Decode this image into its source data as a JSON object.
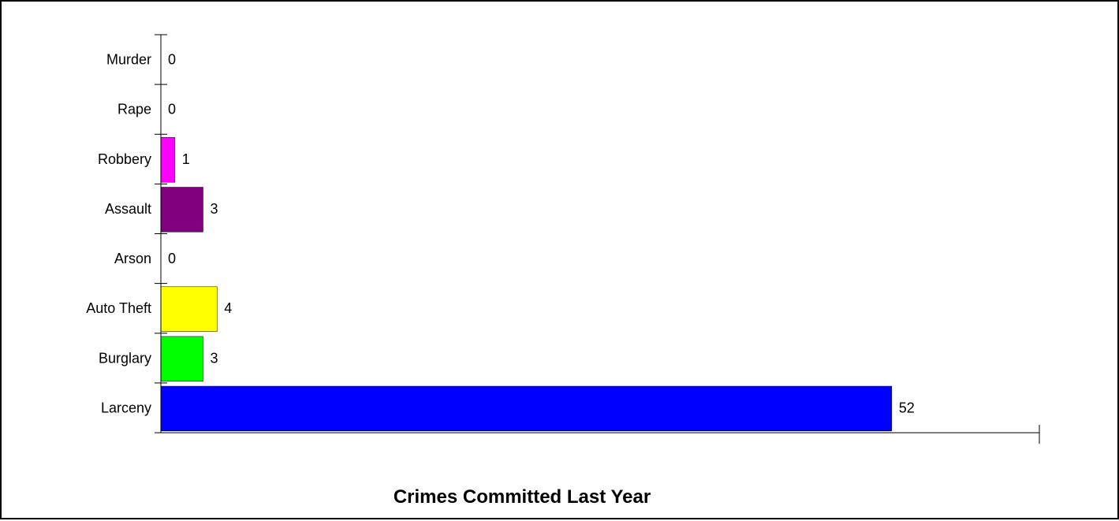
{
  "chart_data": {
    "type": "bar",
    "orientation": "horizontal",
    "title": "Crimes Committed Last Year",
    "xlabel": "",
    "ylabel": "",
    "categories": [
      "Murder",
      "Rape",
      "Robbery",
      "Assault",
      "Arson",
      "Auto Theft",
      "Burglary",
      "Larceny"
    ],
    "values": [
      0,
      0,
      1,
      3,
      0,
      4,
      3,
      52
    ],
    "colors": [
      "#ff00ff",
      "#ff00ff",
      "#ff00ff",
      "#800080",
      "#00ffff",
      "#ffff00",
      "#00ff00",
      "#0000ff"
    ],
    "xlim": [
      0,
      62.5
    ],
    "grid": false,
    "legend": "none",
    "data_labels": true
  }
}
